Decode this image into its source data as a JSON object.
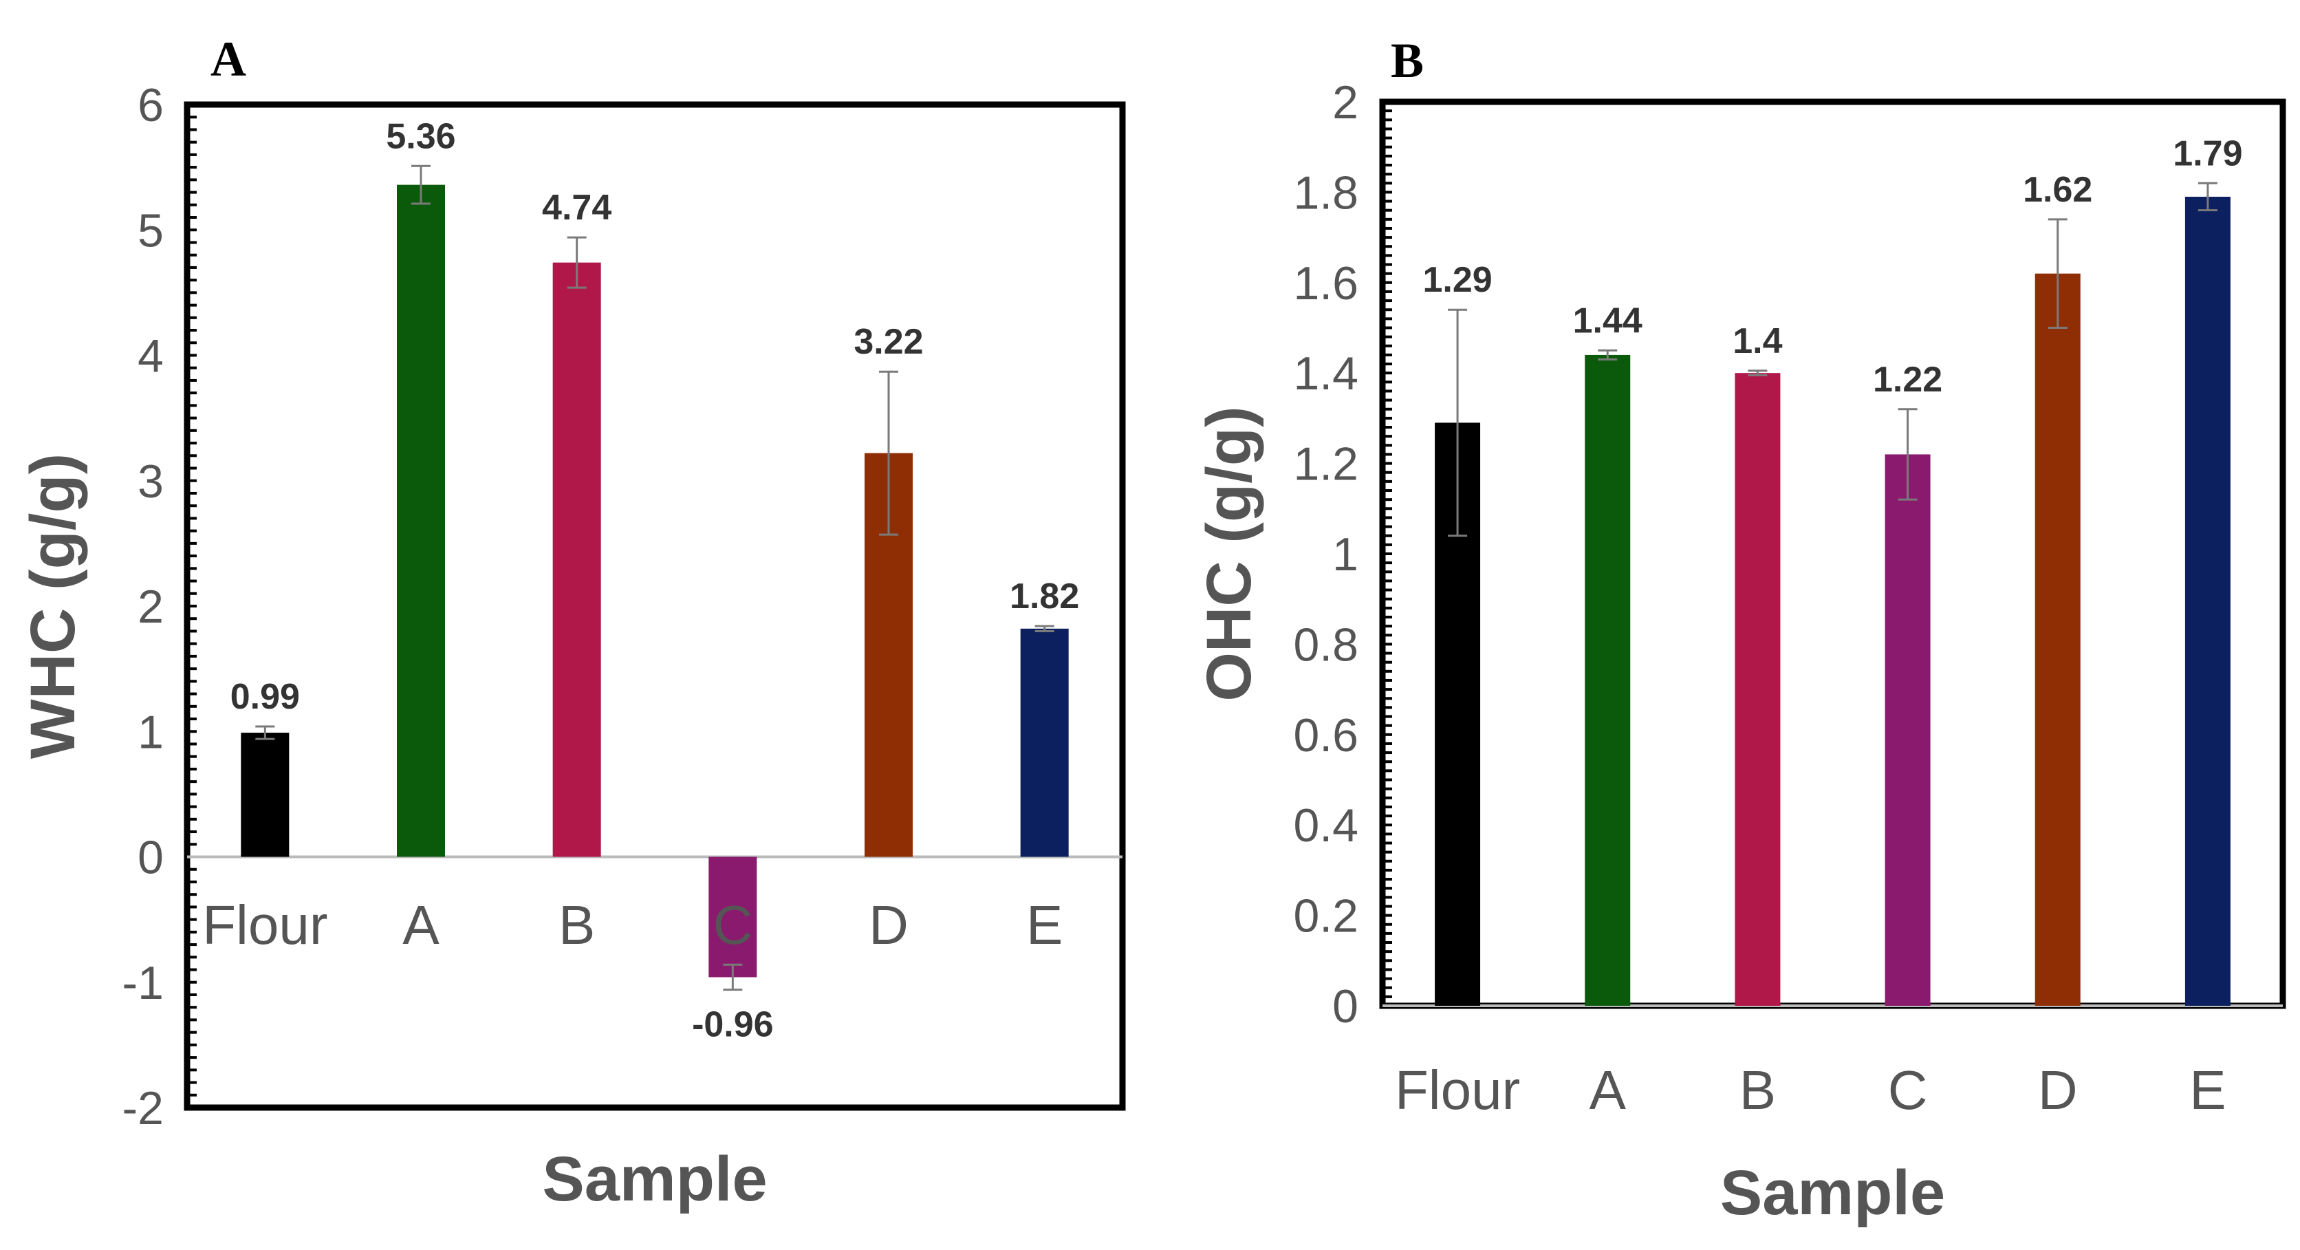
{
  "chart_data": [
    {
      "panel": "A",
      "type": "bar",
      "title": "",
      "xlabel": "Sample",
      "ylabel": "WHC (g/g)",
      "ylim": [
        -2,
        6
      ],
      "yticks": [
        "-2",
        "-1",
        "0",
        "1",
        "2",
        "3",
        "4",
        "5",
        "6"
      ],
      "categories": [
        "Flour",
        "A",
        "B",
        "C",
        "D",
        "E"
      ],
      "values": [
        0.99,
        5.36,
        4.74,
        -0.96,
        3.22,
        1.82
      ],
      "value_labels": [
        "0.99",
        "5.36",
        "4.74",
        "-0.96",
        "3.22",
        "1.82"
      ],
      "errors": [
        0.05,
        0.15,
        0.2,
        0.1,
        0.65,
        0.02
      ],
      "colors": [
        "#000000",
        "#0b5a0b",
        "#b0184a",
        "#891a6e",
        "#8f2e05",
        "#0c1f5e"
      ],
      "grid": false
    },
    {
      "panel": "B",
      "type": "bar",
      "title": "",
      "xlabel": "Sample",
      "ylabel": "OHC (g/g)",
      "ylim": [
        0,
        2
      ],
      "yticks": [
        "0",
        "0.2",
        "0.4",
        "0.6",
        "0.8",
        "1",
        "1.2",
        "1.4",
        "1.6",
        "1.8",
        "2"
      ],
      "categories": [
        "Flour",
        "A",
        "B",
        "C",
        "D",
        "E"
      ],
      "values": [
        1.29,
        1.44,
        1.4,
        1.22,
        1.62,
        1.79
      ],
      "value_labels": [
        "1.29",
        "1.44",
        "1.4",
        "1.22",
        "1.62",
        "1.79"
      ],
      "errors": [
        0.25,
        0.01,
        0.005,
        0.1,
        0.12,
        0.03
      ],
      "colors": [
        "#000000",
        "#0b5a0b",
        "#b0184a",
        "#891a6e",
        "#8f2e05",
        "#0c1f5e"
      ],
      "grid": false
    }
  ]
}
